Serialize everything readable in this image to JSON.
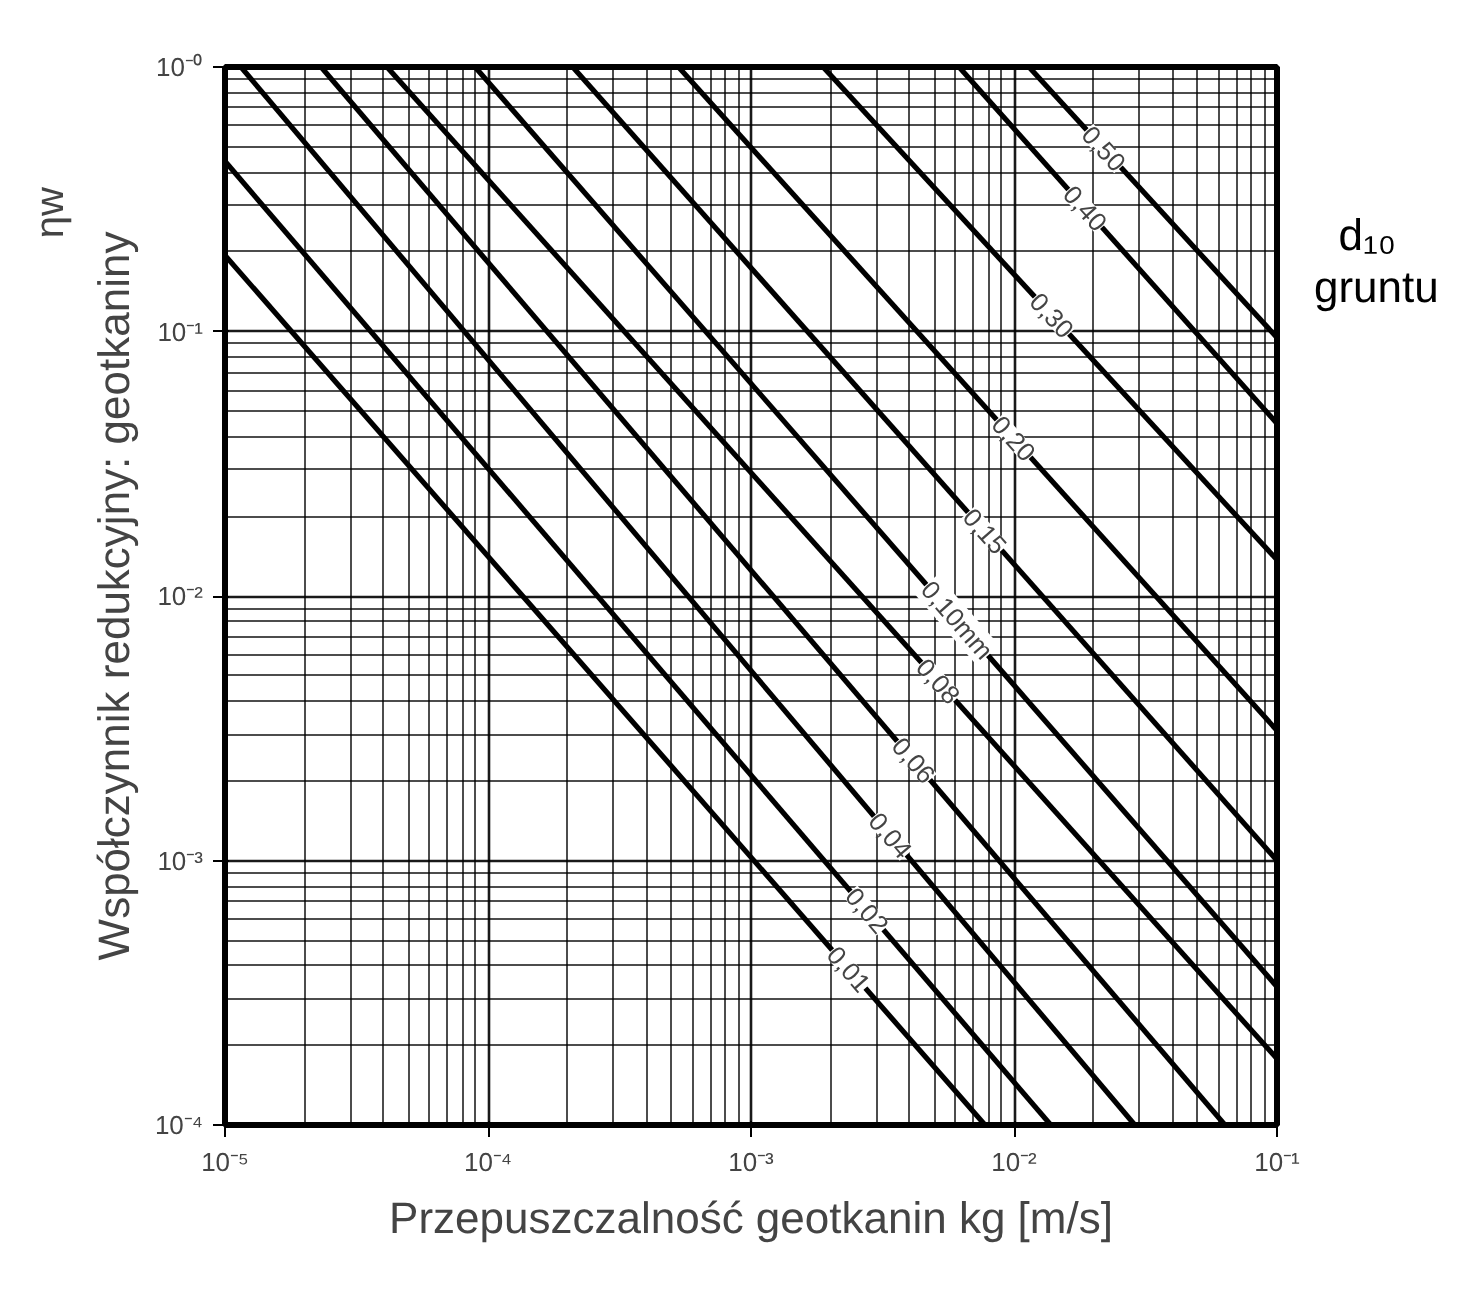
{
  "chart_data": {
    "type": "line",
    "xlabel": "Przepuszczalność geotkanin kg [m/s]",
    "ylabel": "Współczynnik redukcyjny: geotkaniny",
    "log": "xy",
    "grid": true,
    "legend": false,
    "marker": "none",
    "line_style": "solid",
    "xlim": [
      1e-05,
      0.1
    ],
    "ylim": [
      0.0001,
      1
    ],
    "xticks": [
      {
        "value": 1e-05,
        "label": "10⁻⁵"
      },
      {
        "value": 0.0001,
        "label": "10⁻⁴"
      },
      {
        "value": 0.001,
        "label": "10⁻³"
      },
      {
        "value": 0.01,
        "label": "10⁻²"
      },
      {
        "value": 0.1,
        "label": "10⁻¹"
      }
    ],
    "yticks": [
      {
        "value": 0.0001,
        "label": "10⁻⁴"
      },
      {
        "value": 0.001,
        "label": "10⁻³"
      },
      {
        "value": 0.01,
        "label": "10⁻²"
      },
      {
        "value": 0.1,
        "label": "10⁻¹"
      },
      {
        "value": 1,
        "label": "10⁻⁰"
      }
    ],
    "annotations": [
      "ηw",
      "d₁₀ gruntu"
    ],
    "series": [
      {
        "name": "0,01",
        "color": "#000000",
        "x": [
          1e-05,
          0.00776
        ],
        "values": [
          0.194,
          0.0001
        ]
      },
      {
        "name": "0,02",
        "color": "#000000",
        "x": [
          1e-05,
          0.0138
        ],
        "values": [
          0.44,
          0.0001
        ]
      },
      {
        "name": "0,04",
        "color": "#000000",
        "x": [
          1.15e-05,
          0.0288
        ],
        "values": [
          1,
          0.0001
        ]
      },
      {
        "name": "0,06",
        "color": "#000000",
        "x": [
          2.32e-05,
          0.0634
        ],
        "values": [
          1,
          0.0001
        ]
      },
      {
        "name": "0,08",
        "color": "#000000",
        "x": [
          4.13e-05,
          0.1
        ],
        "values": [
          1,
          0.000178
        ]
      },
      {
        "name": "0,10mm",
        "color": "#000000",
        "x": [
          8.93e-05,
          0.1
        ],
        "values": [
          1,
          0.000333
        ]
      },
      {
        "name": "0,15",
        "color": "#000000",
        "x": [
          0.00021,
          0.1
        ],
        "values": [
          1,
          0.001
        ]
      },
      {
        "name": "0,20",
        "color": "#000000",
        "x": [
          0.00053,
          0.1
        ],
        "values": [
          1,
          0.0031
        ]
      },
      {
        "name": "0,30",
        "color": "#000000",
        "x": [
          0.00188,
          0.1
        ],
        "values": [
          1,
          0.0137
        ]
      },
      {
        "name": "0,40",
        "color": "#000000",
        "x": [
          0.00618,
          0.1
        ],
        "values": [
          1,
          0.0449
        ]
      },
      {
        "name": "0,50",
        "color": "#000000",
        "x": [
          0.0114,
          0.1
        ],
        "values": [
          1,
          0.0948
        ]
      }
    ]
  }
}
